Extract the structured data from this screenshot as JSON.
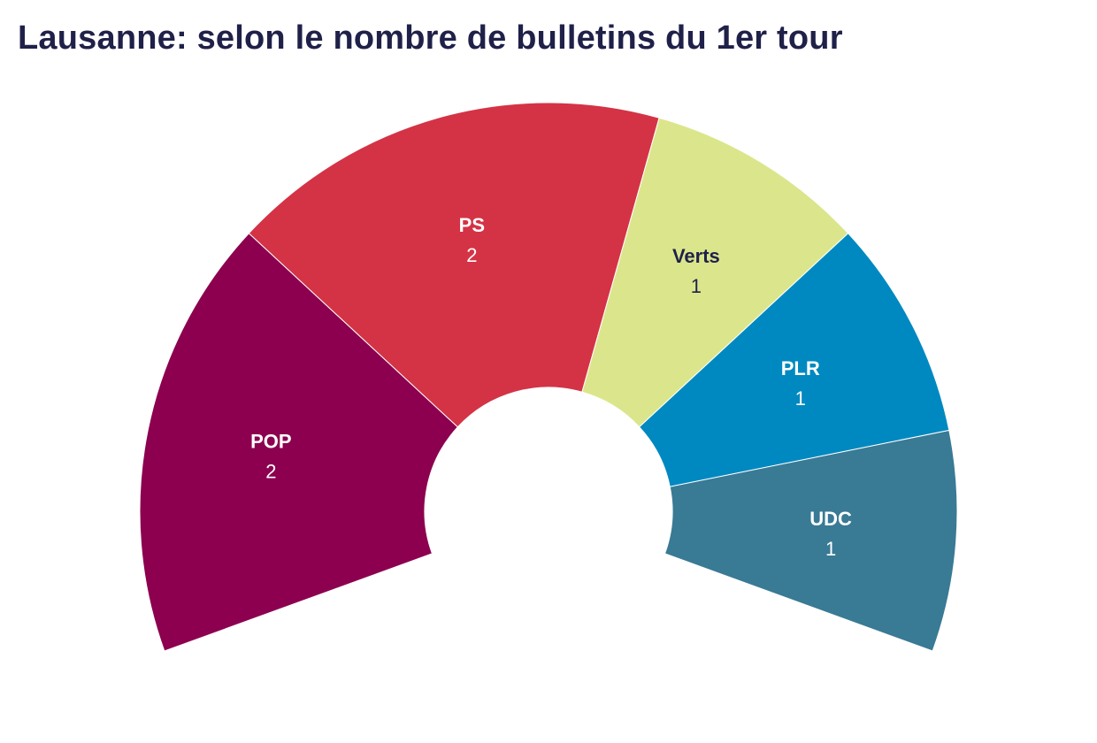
{
  "chart_data": {
    "type": "pie",
    "subtype": "semicircle-donut",
    "title": "Lausanne: selon le nombre de bulletins du 1er tour",
    "categories": [
      "POP",
      "PS",
      "Verts",
      "PLR",
      "UDC"
    ],
    "values": [
      2,
      2,
      1,
      1,
      1
    ],
    "colors": [
      "#8c004f",
      "#d43345",
      "#dbe68c",
      "#0089c0",
      "#397a95"
    ],
    "label_colors": [
      "#ffffff",
      "#ffffff",
      "#1f2149",
      "#ffffff",
      "#ffffff"
    ],
    "legend": "none"
  }
}
